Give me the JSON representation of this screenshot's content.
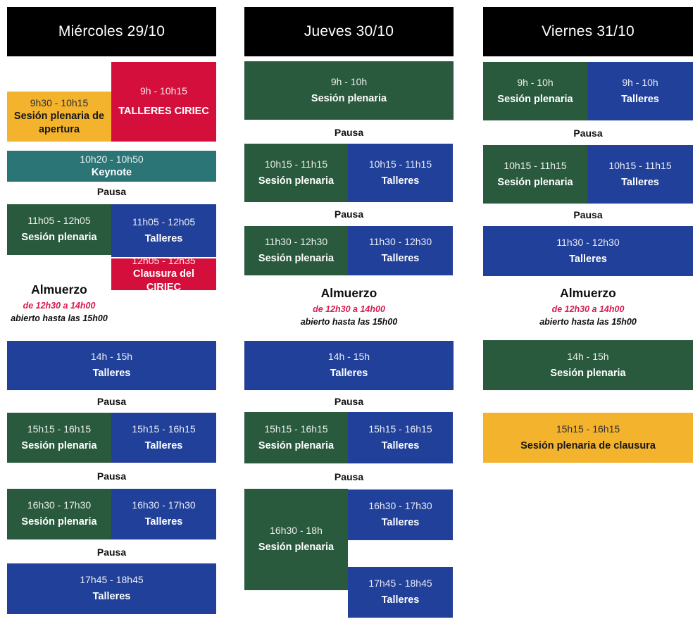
{
  "palette": {
    "header_bg": "#000000",
    "plenaria_green": "#2a5a3d",
    "talleres_blue": "#20409a",
    "ciriec_red": "#d50f3c",
    "keynote_teal": "#2b7577",
    "apertura_yellow": "#f3b32c",
    "almuerzo_time_red": "#d81b4e",
    "text_on_blocks": "#ffffff",
    "text_on_yellow": "#15171c"
  },
  "shared": {
    "pausa": "Pausa"
  },
  "days": [
    {
      "title": "Miércoles 29/10",
      "events": {
        "apertura": {
          "time": "9h30 - 10h15",
          "label": "Sesión plenaria de apertura"
        },
        "talleres_ciriec": {
          "time": "9h - 10h15",
          "label": "TALLERES CIRIEC"
        },
        "keynote": {
          "time": "10h20 - 10h50",
          "label": "Keynote"
        },
        "plenaria_11h05": {
          "time": "11h05 - 12h05",
          "label": "Sesión plenaria"
        },
        "talleres_11h05": {
          "time": "11h05 - 12h05",
          "label": "Talleres"
        },
        "clausura_ciriec": {
          "time": "12h05 - 12h35",
          "label": "Clausura del CIRIEC"
        },
        "almuerzo": {
          "title": "Almuerzo",
          "time": "de 12h30 a 14h00",
          "note": "abierto hasta las 15h00"
        },
        "talleres_14h": {
          "time": "14h - 15h",
          "label": "Talleres"
        },
        "plenaria_15h15": {
          "time": "15h15 - 16h15",
          "label": "Sesión plenaria"
        },
        "talleres_15h15": {
          "time": "15h15 - 16h15",
          "label": "Talleres"
        },
        "plenaria_16h30": {
          "time": "16h30 - 17h30",
          "label": "Sesión plenaria"
        },
        "talleres_16h30": {
          "time": "16h30 - 17h30",
          "label": "Talleres"
        },
        "talleres_17h45": {
          "time": "17h45 - 18h45",
          "label": "Talleres"
        }
      }
    },
    {
      "title": "Jueves 30/10",
      "events": {
        "plenaria_9h": {
          "time": "9h - 10h",
          "label": "Sesión plenaria"
        },
        "plenaria_10h15": {
          "time": "10h15 - 11h15",
          "label": "Sesión plenaria"
        },
        "talleres_10h15": {
          "time": "10h15 - 11h15",
          "label": "Talleres"
        },
        "plenaria_11h30": {
          "time": "11h30 - 12h30",
          "label": "Sesión plenaria"
        },
        "talleres_11h30": {
          "time": "11h30 - 12h30",
          "label": "Talleres"
        },
        "almuerzo": {
          "title": "Almuerzo",
          "time": "de 12h30 a 14h00",
          "note": "abierto hasta las 15h00"
        },
        "talleres_14h": {
          "time": "14h - 15h",
          "label": "Talleres"
        },
        "plenaria_15h15": {
          "time": "15h15 - 16h15",
          "label": "Sesión plenaria"
        },
        "talleres_15h15": {
          "time": "15h15 - 16h15",
          "label": "Talleres"
        },
        "plenaria_16h30": {
          "time": "16h30 - 18h",
          "label": "Sesión plenaria"
        },
        "talleres_16h30": {
          "time": "16h30 - 17h30",
          "label": "Talleres"
        },
        "talleres_17h45": {
          "time": "17h45 - 18h45",
          "label": "Talleres"
        }
      }
    },
    {
      "title": "Viernes 31/10",
      "events": {
        "plenaria_9h": {
          "time": "9h - 10h",
          "label": "Sesión plenaria"
        },
        "talleres_9h": {
          "time": "9h - 10h",
          "label": "Talleres"
        },
        "plenaria_10h15": {
          "time": "10h15 - 11h15",
          "label": "Sesión plenaria"
        },
        "talleres_10h15": {
          "time": "10h15 - 11h15",
          "label": "Talleres"
        },
        "talleres_11h30": {
          "time": "11h30 - 12h30",
          "label": "Talleres"
        },
        "almuerzo": {
          "title": "Almuerzo",
          "time": "de 12h30 a 14h00",
          "note": "abierto hasta las 15h00"
        },
        "plenaria_14h": {
          "time": "14h - 15h",
          "label": "Sesión plenaria"
        },
        "clausura": {
          "time": "15h15 - 16h15",
          "label": "Sesión plenaria de clausura"
        }
      }
    }
  ]
}
